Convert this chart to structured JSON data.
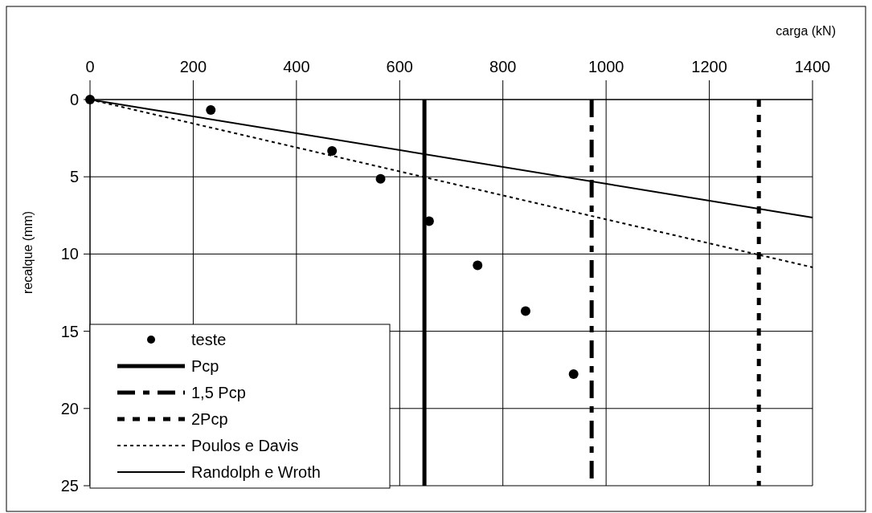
{
  "chart_data": {
    "type": "scatter",
    "xlabel": "carga (kN)",
    "ylabel": "recalque (mm)",
    "xlim": [
      0,
      1400
    ],
    "xticks": [
      0,
      200,
      400,
      600,
      800,
      1000,
      1200,
      1400
    ],
    "ylim": [
      25,
      0
    ],
    "yticks": [
      0,
      5,
      10,
      15,
      20,
      25
    ],
    "grid": true,
    "legend": "bottom left",
    "marker": "circle",
    "series": [
      {
        "name": "teste",
        "color": "#000000",
        "x": [
          0,
          234,
          469,
          563,
          657,
          751,
          844,
          937
        ],
        "values": [
          0,
          0.67,
          3.33,
          5.13,
          7.87,
          10.73,
          13.69,
          17.78
        ]
      },
      {
        "name": "Pcp",
        "type": "line",
        "color": "#000000",
        "line_style": "solid",
        "marker": "none",
        "x": [
          648,
          648
        ],
        "values": [
          0,
          25
        ]
      },
      {
        "name": "1,5 Pcp",
        "type": "line",
        "color": "#000000",
        "line_style": "dashed",
        "marker": "none",
        "x": [
          972,
          972
        ],
        "values": [
          0,
          25
        ]
      },
      {
        "name": "2Pcp",
        "type": "line",
        "color": "#000000",
        "line_style": "dotted",
        "marker": "none",
        "x": [
          1296,
          1296
        ],
        "values": [
          0,
          25
        ]
      },
      {
        "name": "Poulos e Davis",
        "type": "line",
        "color": "#000000",
        "line_style": "dotted",
        "marker": "none",
        "x": [
          0,
          1400
        ],
        "values": [
          0,
          10.86
        ]
      },
      {
        "name": "Randolph e Wroth",
        "type": "line",
        "color": "#000000",
        "line_style": "solid",
        "marker": "none",
        "x": [
          0,
          1400
        ],
        "values": [
          0,
          7.64
        ]
      }
    ]
  }
}
